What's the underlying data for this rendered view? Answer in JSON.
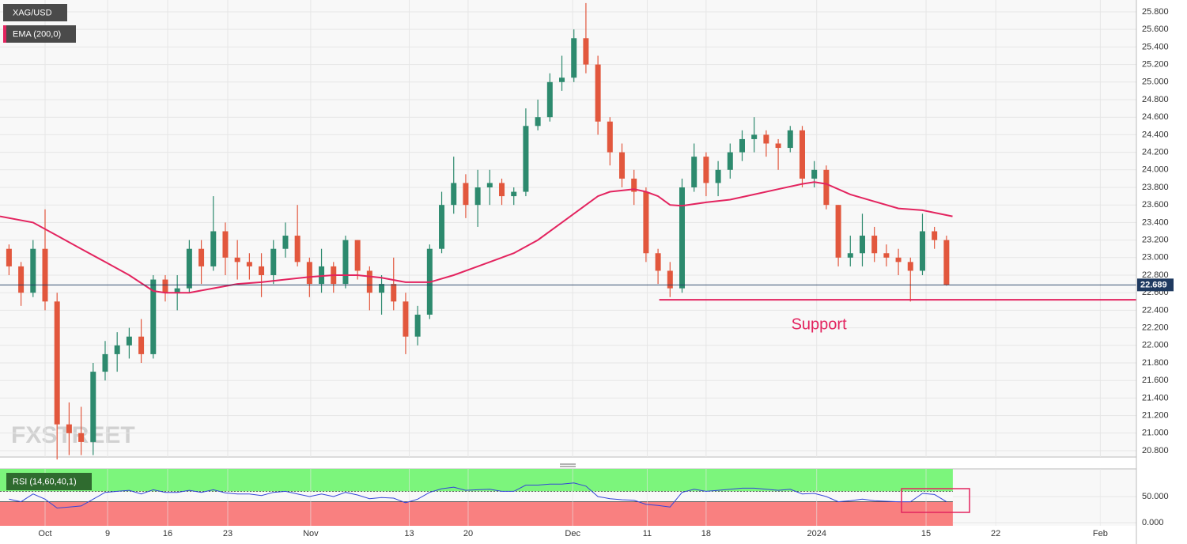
{
  "chart_data": [
    {
      "type": "candlestick",
      "grid": true,
      "series": [
        {
          "name": "XAG/USD",
          "type": "candlestick",
          "x": [
            -3,
            -2,
            -1,
            0,
            1,
            2,
            3,
            4,
            5,
            6,
            7,
            8,
            9,
            10,
            11,
            12,
            13,
            14,
            15,
            16,
            17,
            18,
            19,
            20,
            21,
            22,
            23,
            24,
            25,
            26,
            27,
            28,
            29,
            30,
            31,
            32,
            33,
            34,
            35,
            36,
            37,
            38,
            39,
            40,
            41,
            42,
            43,
            44,
            45,
            46,
            47,
            48,
            49,
            50,
            51,
            52,
            53,
            54,
            55,
            56,
            57,
            58,
            59,
            60,
            61,
            62,
            63,
            64,
            65,
            66,
            67,
            68,
            69,
            70,
            71,
            72,
            73,
            74,
            75
          ],
          "open": [
            23.1,
            22.9,
            22.6,
            23.1,
            22.5,
            21.1,
            21.0,
            20.9,
            21.7,
            21.9,
            22.0,
            22.1,
            21.9,
            22.75,
            22.6,
            22.65,
            23.1,
            22.9,
            23.3,
            23.0,
            22.95,
            22.9,
            22.8,
            23.1,
            23.25,
            22.95,
            22.7,
            22.9,
            22.7,
            23.2,
            22.85,
            22.6,
            22.7,
            22.5,
            22.1,
            22.35,
            23.1,
            23.6,
            23.85,
            23.6,
            23.8,
            23.85,
            23.7,
            23.75,
            24.5,
            24.6,
            25.0,
            25.05,
            25.5,
            25.2,
            24.55,
            24.2,
            23.9,
            23.75,
            23.05,
            22.85,
            22.65,
            23.8,
            24.15,
            23.85,
            24.0,
            24.2,
            24.35,
            24.4,
            24.3,
            24.25,
            24.45,
            23.9,
            24.0,
            23.6,
            23.0,
            23.05,
            23.25,
            23.05,
            23.0,
            22.95,
            22.85,
            23.3,
            23.2
          ],
          "high": [
            23.15,
            22.95,
            23.2,
            23.55,
            22.6,
            21.35,
            21.3,
            21.8,
            22.05,
            22.15,
            22.2,
            22.3,
            22.8,
            22.8,
            22.8,
            23.2,
            23.2,
            23.7,
            23.4,
            23.2,
            23.05,
            23.05,
            23.2,
            23.4,
            23.6,
            23.0,
            23.1,
            22.95,
            23.25,
            23.2,
            22.9,
            22.8,
            23.0,
            22.6,
            22.45,
            23.15,
            23.75,
            24.15,
            23.95,
            24.0,
            24.0,
            23.9,
            23.8,
            24.7,
            24.8,
            25.1,
            25.3,
            25.6,
            25.9,
            25.3,
            24.6,
            24.3,
            24.0,
            23.8,
            23.1,
            22.95,
            23.9,
            24.3,
            24.2,
            24.1,
            24.3,
            24.45,
            24.6,
            24.45,
            24.35,
            24.5,
            24.5,
            24.1,
            24.05,
            23.6,
            23.25,
            23.5,
            23.35,
            23.15,
            23.1,
            23.0,
            23.5,
            23.35,
            23.25
          ],
          "low": [
            22.8,
            22.45,
            22.55,
            22.4,
            20.7,
            20.75,
            20.75,
            20.75,
            21.6,
            21.7,
            21.85,
            21.8,
            21.85,
            22.5,
            22.4,
            22.6,
            22.7,
            22.85,
            22.8,
            22.75,
            22.75,
            22.55,
            22.7,
            23.0,
            22.9,
            22.55,
            22.6,
            22.6,
            22.65,
            22.75,
            22.4,
            22.35,
            22.4,
            21.9,
            22.0,
            22.3,
            23.05,
            23.5,
            23.45,
            23.35,
            23.6,
            23.6,
            23.6,
            23.7,
            24.45,
            24.55,
            24.9,
            25.0,
            25.1,
            24.4,
            24.05,
            23.8,
            23.6,
            22.95,
            22.7,
            22.55,
            22.6,
            23.75,
            23.7,
            23.7,
            23.9,
            24.1,
            24.2,
            24.15,
            24.0,
            24.2,
            23.8,
            23.8,
            23.55,
            22.9,
            22.9,
            22.9,
            22.95,
            22.9,
            22.8,
            22.5,
            22.8,
            23.1,
            22.68
          ],
          "close": [
            22.9,
            22.6,
            23.1,
            22.5,
            21.1,
            21.0,
            20.9,
            21.7,
            21.9,
            22.0,
            22.1,
            21.9,
            22.75,
            22.6,
            22.65,
            23.1,
            22.9,
            23.3,
            23.0,
            22.95,
            22.9,
            22.8,
            23.1,
            23.25,
            22.95,
            22.7,
            22.9,
            22.7,
            23.2,
            22.85,
            22.6,
            22.7,
            22.5,
            22.1,
            22.35,
            23.1,
            23.6,
            23.85,
            23.6,
            23.8,
            23.85,
            23.7,
            23.75,
            24.5,
            24.6,
            25.0,
            25.05,
            25.5,
            25.2,
            24.55,
            24.2,
            23.9,
            23.75,
            23.05,
            22.85,
            22.65,
            23.8,
            24.15,
            23.85,
            24.0,
            24.2,
            24.35,
            24.4,
            24.3,
            24.25,
            24.45,
            23.9,
            24.0,
            23.6,
            23.0,
            23.05,
            23.25,
            23.05,
            23.0,
            22.95,
            22.85,
            23.3,
            23.2,
            22.689
          ],
          "up_color": "#2d8a6e",
          "down_color": "#e2573d"
        },
        {
          "name": "EMA (200,0)",
          "type": "line",
          "x": [
            -3.75,
            -1,
            1,
            3,
            5,
            7,
            9,
            10,
            12,
            14,
            16,
            18,
            20,
            22,
            24,
            26,
            28,
            30,
            32,
            34,
            36,
            38,
            39,
            41,
            43,
            45,
            46,
            47,
            49,
            50,
            51,
            52,
            53,
            55,
            57,
            59,
            61,
            63,
            64,
            65,
            67,
            69,
            71,
            73,
            75.5
          ],
          "values": [
            23.47,
            23.4,
            23.25,
            23.1,
            22.95,
            22.8,
            22.62,
            22.6,
            22.6,
            22.65,
            22.7,
            22.72,
            22.75,
            22.78,
            22.8,
            22.8,
            22.77,
            22.72,
            22.72,
            22.8,
            22.9,
            23.0,
            23.05,
            23.2,
            23.4,
            23.6,
            23.7,
            23.75,
            23.78,
            23.75,
            23.7,
            23.6,
            23.59,
            23.63,
            23.66,
            23.72,
            23.78,
            23.84,
            23.86,
            23.84,
            23.72,
            23.64,
            23.56,
            23.54,
            23.47
          ],
          "color": "#e3245f"
        }
      ],
      "last_price": 22.689,
      "annotation": {
        "text": "Support",
        "level": 22.52,
        "x_start": 51.1,
        "color": "#e3245f"
      },
      "watermark": "FXSTREET",
      "xlim": [
        -3.75,
        90.8
      ],
      "xticks": [
        {
          "value": 0,
          "label": "Oct"
        },
        {
          "value": 5.2,
          "label": "9"
        },
        {
          "value": 10.2,
          "label": "16"
        },
        {
          "value": 15.2,
          "label": "23"
        },
        {
          "value": 22.1,
          "label": "Nov"
        },
        {
          "value": 30.3,
          "label": "13"
        },
        {
          "value": 35.2,
          "label": "20"
        },
        {
          "value": 43.9,
          "label": "Dec"
        },
        {
          "value": 50.1,
          "label": "11"
        },
        {
          "value": 55.0,
          "label": "18"
        },
        {
          "value": 64.2,
          "label": "2024"
        },
        {
          "value": 73.3,
          "label": "15"
        },
        {
          "value": 79.1,
          "label": "22"
        },
        {
          "value": 87.8,
          "label": "Feb"
        }
      ],
      "ylim": [
        20.728,
        25.935
      ],
      "yticks": [
        {
          "value": 20.8,
          "label": "20.800"
        },
        {
          "value": 21.0,
          "label": "21.000"
        },
        {
          "value": 21.2,
          "label": "21.200"
        },
        {
          "value": 21.4,
          "label": "21.400"
        },
        {
          "value": 21.6,
          "label": "21.600"
        },
        {
          "value": 21.8,
          "label": "21.800"
        },
        {
          "value": 22.0,
          "label": "22.000"
        },
        {
          "value": 22.2,
          "label": "22.200"
        },
        {
          "value": 22.4,
          "label": "22.400"
        },
        {
          "value": 22.6,
          "label": "22.600"
        },
        {
          "value": 22.8,
          "label": "22.800"
        },
        {
          "value": 23.0,
          "label": "23.000"
        },
        {
          "value": 23.2,
          "label": "23.200"
        },
        {
          "value": 23.4,
          "label": "23.400"
        },
        {
          "value": 23.6,
          "label": "23.600"
        },
        {
          "value": 23.8,
          "label": "23.800"
        },
        {
          "value": 24.0,
          "label": "24.000"
        },
        {
          "value": 24.2,
          "label": "24.200"
        },
        {
          "value": 24.4,
          "label": "24.400"
        },
        {
          "value": 24.6,
          "label": "24.600"
        },
        {
          "value": 24.8,
          "label": "24.800"
        },
        {
          "value": 25.0,
          "label": "25.000"
        },
        {
          "value": 25.2,
          "label": "25.200"
        },
        {
          "value": 25.4,
          "label": "25.400"
        },
        {
          "value": 25.6,
          "label": "25.600"
        },
        {
          "value": 25.8,
          "label": "25.800"
        }
      ]
    },
    {
      "type": "line",
      "series": [
        {
          "name": "RSI (14,60,40,1)",
          "x": [
            -3,
            -2,
            -1,
            0,
            1,
            2,
            3,
            4,
            5,
            6,
            7,
            8,
            9,
            10,
            11,
            12,
            13,
            14,
            15,
            16,
            17,
            18,
            19,
            20,
            21,
            22,
            23,
            24,
            25,
            26,
            27,
            28,
            29,
            30,
            31,
            32,
            33,
            34,
            35,
            36,
            37,
            38,
            39,
            40,
            41,
            42,
            43,
            44,
            45,
            46,
            47,
            48,
            49,
            50,
            51,
            52,
            53,
            54,
            55,
            56,
            57,
            58,
            59,
            60,
            61,
            62,
            63,
            64,
            65,
            66,
            67,
            68,
            69,
            70,
            71,
            72,
            73,
            74,
            75
          ],
          "values": [
            45,
            40,
            55,
            45,
            28,
            30,
            32,
            45,
            58,
            60,
            62,
            55,
            63,
            58,
            58,
            62,
            58,
            63,
            57,
            55,
            55,
            52,
            58,
            60,
            55,
            50,
            55,
            50,
            58,
            53,
            46,
            48,
            47,
            38,
            45,
            58,
            65,
            68,
            62,
            63,
            64,
            60,
            60,
            72,
            72,
            74,
            74,
            76,
            70,
            50,
            46,
            44,
            43,
            35,
            33,
            30,
            58,
            64,
            60,
            62,
            64,
            66,
            66,
            64,
            62,
            64,
            55,
            56,
            50,
            40,
            42,
            45,
            42,
            41,
            40,
            40,
            56,
            54,
            40
          ],
          "color": "#3344d8"
        }
      ],
      "upper_level": 60,
      "lower_level": 40,
      "upper_color": "#7cf57c",
      "lower_color": "#f98080",
      "xlim": [
        -3.75,
        90.8
      ],
      "ylim": [
        -6,
        103
      ],
      "yticks": [
        {
          "value": 0,
          "label": "0.000"
        },
        {
          "value": 50,
          "label": "50.000"
        }
      ]
    }
  ]
}
